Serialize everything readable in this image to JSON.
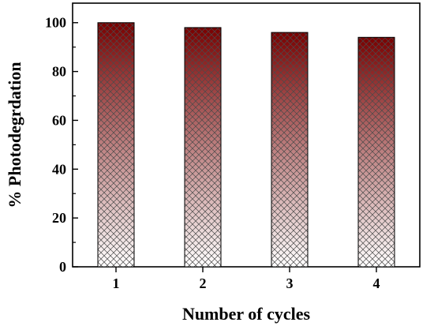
{
  "chart_data": {
    "type": "bar",
    "xlabel": "Number of cycles",
    "ylabel": "% Photodegrdation",
    "categories": [
      "1",
      "2",
      "3",
      "4"
    ],
    "values": [
      100,
      98,
      96,
      94
    ],
    "ylim": [
      0,
      108
    ],
    "yticks": [
      "0",
      "20",
      "40",
      "60",
      "80",
      "100"
    ],
    "grid": false,
    "legend": "none",
    "colors": {
      "bar_top": "#7a0000",
      "bar_bottom": "#ffffff",
      "hatch": "#4a4a4a",
      "outline": "#000000",
      "axis": "#000000"
    }
  }
}
